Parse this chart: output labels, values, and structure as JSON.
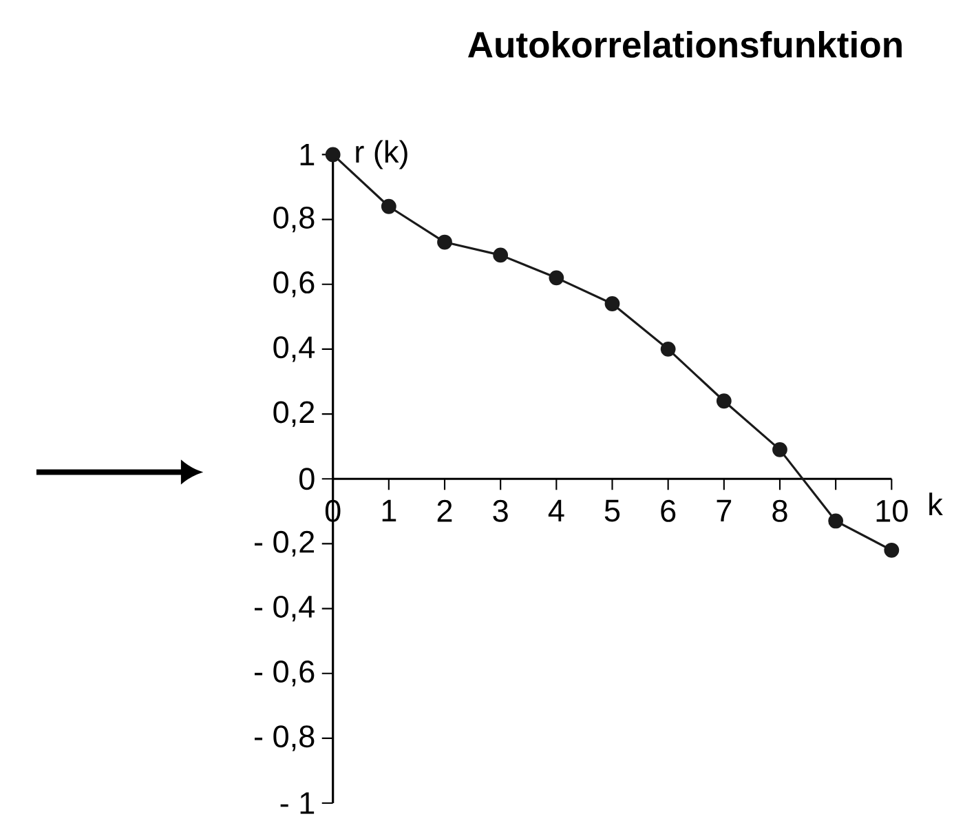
{
  "chart_data": {
    "type": "line",
    "title": "Autokorrelationsfunktion",
    "xlabel": "k",
    "ylabel": "r (k)",
    "x": [
      0,
      1,
      2,
      3,
      4,
      5,
      6,
      7,
      8,
      9,
      10
    ],
    "values": [
      1,
      0.84,
      0.73,
      0.69,
      0.62,
      0.54,
      0.4,
      0.24,
      0.09,
      -0.13,
      -0.22
    ],
    "color": "#1a1a1a",
    "marker": "circle",
    "line_style": "solid",
    "xlim": [
      0,
      10
    ],
    "xticks": [
      0,
      1,
      2,
      3,
      4,
      5,
      6,
      7,
      8,
      {
        "value": 9,
        "label": null
      },
      10
    ],
    "ylim": [
      -1,
      1
    ],
    "yticks": [
      {
        "value": -1,
        "label": "- 1"
      },
      {
        "value": -0.8,
        "label": "- 0,8"
      },
      {
        "value": -0.6,
        "label": "- 0,6"
      },
      {
        "value": -0.4,
        "label": "- 0,4"
      },
      {
        "value": -0.2,
        "label": "- 0,2"
      },
      0,
      {
        "value": 0.2,
        "label": "0,2"
      },
      {
        "value": 0.4,
        "label": "0,4"
      },
      {
        "value": 0.6,
        "label": "0,6"
      },
      {
        "value": 0.8,
        "label": "0,8"
      },
      1
    ]
  }
}
